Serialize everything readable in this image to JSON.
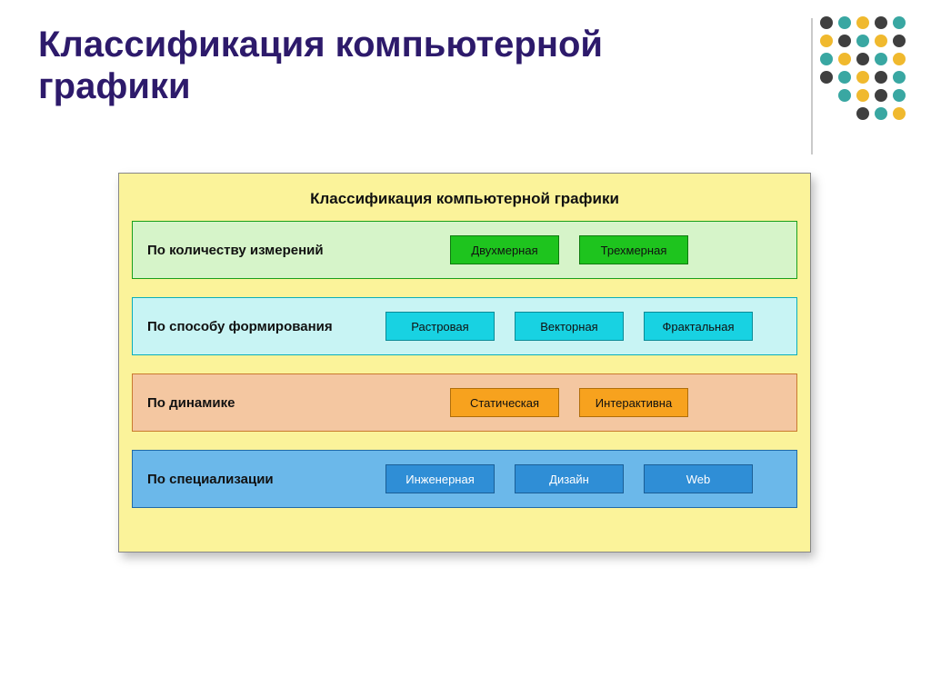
{
  "slide": {
    "title": "Классификация компьютерной графики",
    "title_color": "#2d1a6b",
    "background": "#ffffff"
  },
  "decor": {
    "dot_rows": [
      5,
      5,
      5,
      5,
      4,
      3
    ],
    "dot_colors": [
      "#3f3f3f",
      "#39a7a2",
      "#f0b92e"
    ],
    "dot_size": 14,
    "side_line_color": "#c9c9c9"
  },
  "panel": {
    "title": "Классификация компьютерной графики",
    "background": "#fbf39a",
    "border_color": "#888888",
    "title_color": "#111111",
    "rows": [
      {
        "label": "По количеству измерений",
        "bg": "#d6f4c9",
        "border": "#1aa01a",
        "chip_bg": "#1ec41e",
        "chip_border": "#0e7a0e",
        "items": [
          "Двухмерная",
          "Трехмерная"
        ]
      },
      {
        "label": "По способу формирования",
        "bg": "#c8f4f4",
        "border": "#0aaeba",
        "chip_bg": "#18d2e2",
        "chip_border": "#0a8a96",
        "items": [
          "Растровая",
          "Векторная",
          "Фрактальная"
        ]
      },
      {
        "label": "По динамике",
        "bg": "#f4c7a1",
        "border": "#c97a2e",
        "chip_bg": "#f7a21e",
        "chip_border": "#b06e0a",
        "items": [
          "Статическая",
          "Интерактивна"
        ]
      },
      {
        "label": "По специализации",
        "bg": "#6bb8ea",
        "border": "#1f6aa8",
        "chip_bg": "#2f8ed6",
        "chip_border": "#1a5e96",
        "chip_text": "#ffffff",
        "items": [
          "Инженерная",
          "Дизайн",
          "Web"
        ]
      }
    ]
  }
}
